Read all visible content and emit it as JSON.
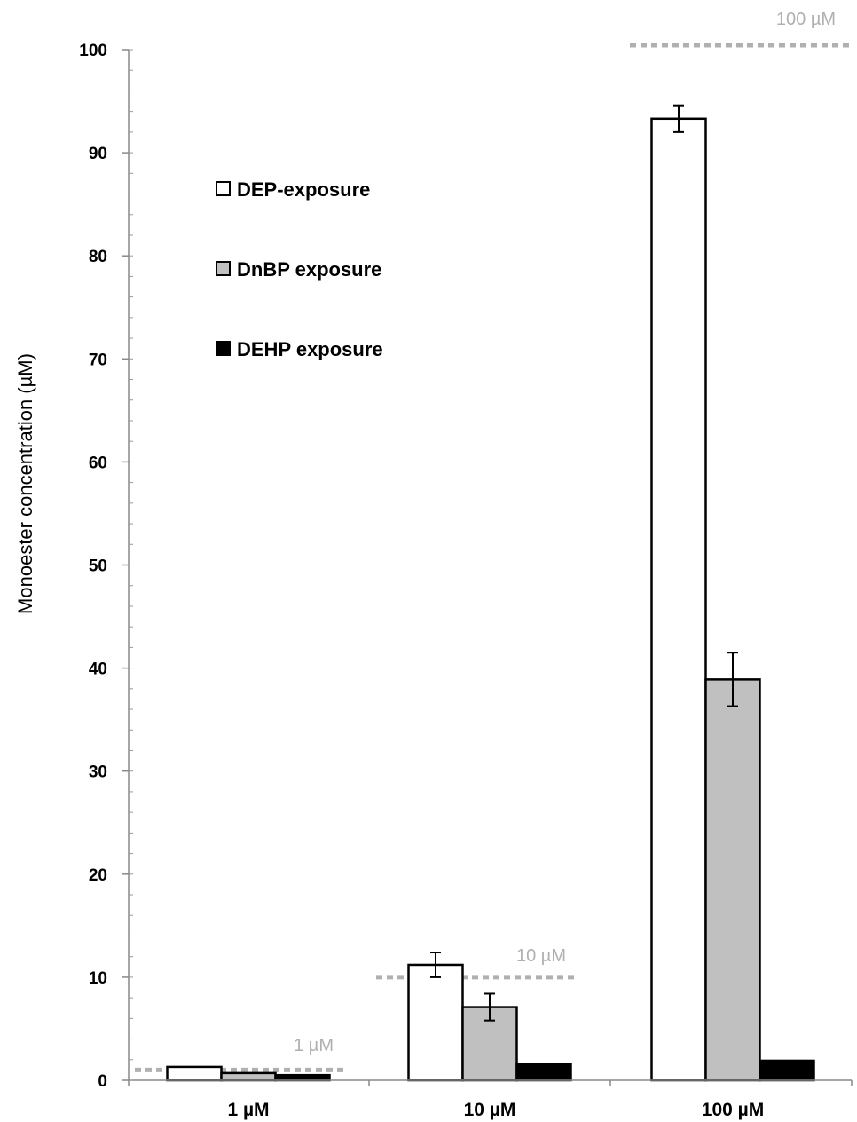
{
  "chart_data": {
    "type": "bar",
    "ylabel": "Monoester concentration (µM)",
    "xlabel": "",
    "ylim": [
      0,
      100
    ],
    "yticks": [
      "0",
      "10",
      "20",
      "30",
      "40",
      "50",
      "60",
      "70",
      "80",
      "90",
      "100"
    ],
    "categories": [
      "1 µM",
      "10 µM",
      "100 µM"
    ],
    "series": [
      {
        "name": "DEP-exposure",
        "fill": "#ffffff",
        "values": [
          1.3,
          11.2,
          93.3
        ],
        "errors": [
          0.1,
          1.2,
          1.3
        ]
      },
      {
        "name": "DnBP exposure",
        "fill": "#c0c0c0",
        "values": [
          0.7,
          7.1,
          38.9
        ],
        "errors": [
          0.1,
          1.3,
          2.6
        ]
      },
      {
        "name": "DEHP exposure",
        "fill": "#000000",
        "values": [
          0.5,
          1.6,
          1.9
        ],
        "errors": [
          0.0,
          0.0,
          0.0
        ]
      }
    ],
    "reference_lines": [
      {
        "label": "1 µM",
        "value": 1
      },
      {
        "label": "10 µM",
        "value": 10
      },
      {
        "label": "100 µM",
        "value": 100
      }
    ],
    "reference_color": "#b0b0b0",
    "legend_position": "top-left",
    "grid": false
  }
}
